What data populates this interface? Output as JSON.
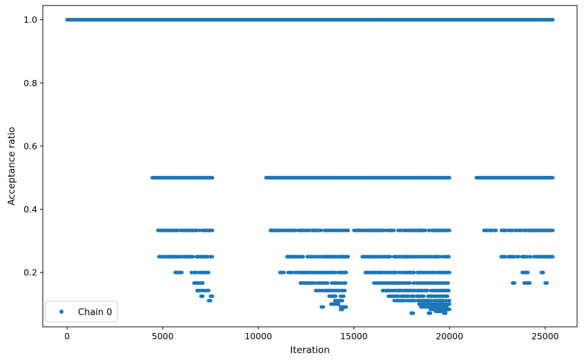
{
  "chart_data": {
    "type": "scatter",
    "xlabel": "Iteration",
    "ylabel": "Acceptance ratio",
    "xlim": [
      -1270,
      26670
    ],
    "ylim": [
      0.028,
      1.045
    ],
    "xticks": [
      0,
      5000,
      10000,
      15000,
      20000,
      25000
    ],
    "xtick_labels": [
      "0",
      "5000",
      "10000",
      "15000",
      "20000",
      "25000"
    ],
    "yticks": [
      0.2,
      0.4,
      0.6,
      0.8,
      1.0
    ],
    "ytick_labels": [
      "0.2",
      "0.4",
      "0.6",
      "0.8",
      "1.0"
    ],
    "grid": false,
    "legend_position": "lower-left",
    "marker_color": "#1f77b4",
    "series": [
      {
        "name": "Chain 0",
        "bands": [
          {
            "y": 1.0,
            "x_ranges": [
              [
                0,
                25400
              ]
            ]
          },
          {
            "y": 0.5,
            "x_ranges": [
              [
                4450,
                7600
              ],
              [
                10400,
                20000
              ],
              [
                21400,
                25400
              ]
            ]
          },
          {
            "y": 0.3333,
            "x_ranges": [
              [
                4750,
                7600
              ],
              [
                10600,
                14700
              ],
              [
                15000,
                20000
              ],
              [
                21800,
                25400
              ]
            ]
          },
          {
            "y": 0.25,
            "x_ranges": [
              [
                4700,
                7600
              ],
              [
                11500,
                14700
              ],
              [
                15400,
                20000
              ],
              [
                22700,
                25400
              ]
            ]
          },
          {
            "y": 0.2,
            "x_ranges": [
              [
                5650,
                6000
              ],
              [
                6500,
                7500
              ],
              [
                11100,
                14600
              ],
              [
                15600,
                20000
              ],
              [
                23800,
                24100
              ],
              [
                24800,
                24900
              ]
            ]
          },
          {
            "y": 0.1667,
            "x_ranges": [
              [
                6600,
                7100
              ],
              [
                12200,
                14600
              ],
              [
                16000,
                20000
              ],
              [
                23300,
                23400
              ],
              [
                23900,
                24200
              ],
              [
                25000,
                25100
              ]
            ]
          },
          {
            "y": 0.1429,
            "x_ranges": [
              [
                6800,
                7400
              ],
              [
                13000,
                14600
              ],
              [
                16500,
                20000
              ]
            ]
          },
          {
            "y": 0.125,
            "x_ranges": [
              [
                7000,
                7100
              ],
              [
                7500,
                7600
              ],
              [
                13700,
                14500
              ],
              [
                16800,
                20000
              ]
            ]
          },
          {
            "y": 0.1111,
            "x_ranges": [
              [
                7400,
                7500
              ],
              [
                14000,
                14400
              ],
              [
                17000,
                20000
              ]
            ]
          },
          {
            "y": 0.1,
            "x_ranges": [
              [
                13800,
                14200
              ],
              [
                18300,
                20000
              ]
            ]
          },
          {
            "y": 0.0909,
            "x_ranges": [
              [
                13300,
                13400
              ],
              [
                14300,
                14600
              ],
              [
                18500,
                19900
              ]
            ]
          },
          {
            "y": 0.0833,
            "x_ranges": [
              [
                14300,
                14400
              ],
              [
                19000,
                20000
              ]
            ]
          },
          {
            "y": 0.0769,
            "x_ranges": [
              [
                19200,
                19800
              ]
            ]
          },
          {
            "y": 0.0714,
            "x_ranges": [
              [
                18000,
                18100
              ],
              [
                18900,
                19000
              ],
              [
                19700,
                19800
              ]
            ]
          }
        ]
      }
    ]
  }
}
